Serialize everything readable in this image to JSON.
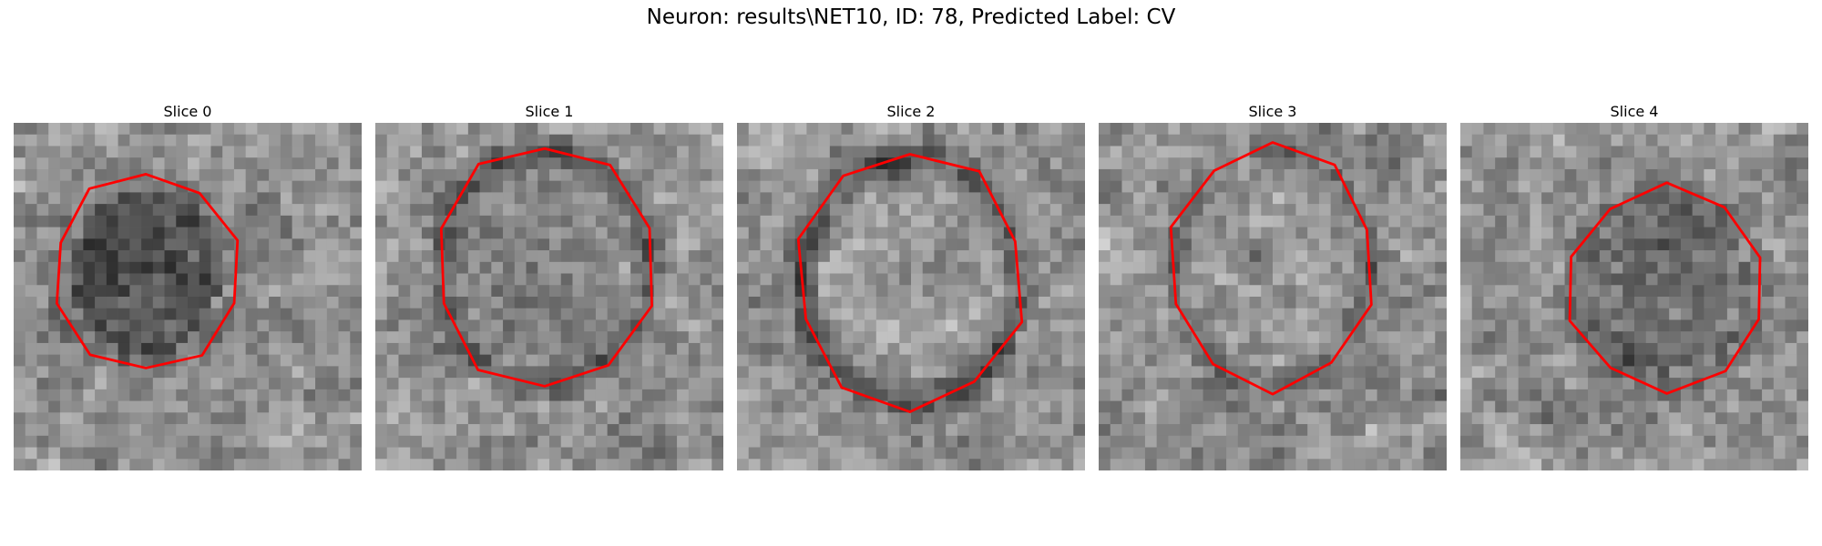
{
  "figure": {
    "title": "Neuron: results\\NET10, ID: 78, Predicted Label: CV"
  },
  "panels": [
    {
      "title": "Slice 0",
      "image": "grayscale-microscopy-slice",
      "contour_color": "#ff0000"
    },
    {
      "title": "Slice 1",
      "image": "grayscale-microscopy-slice",
      "contour_color": "#ff0000"
    },
    {
      "title": "Slice 2",
      "image": "grayscale-microscopy-slice",
      "contour_color": "#ff0000"
    },
    {
      "title": "Slice 3",
      "image": "grayscale-microscopy-slice",
      "contour_color": "#ff0000"
    },
    {
      "title": "Slice 4",
      "image": "grayscale-microscopy-slice",
      "contour_color": "#ff0000"
    }
  ]
}
